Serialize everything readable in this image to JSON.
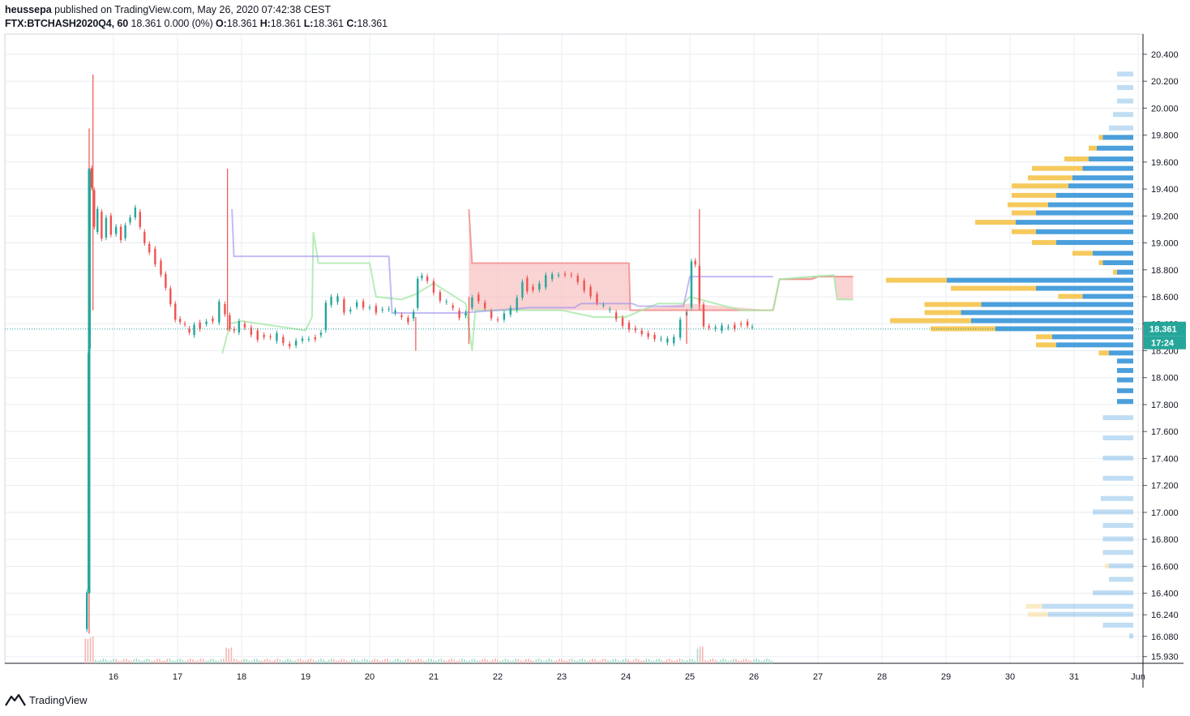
{
  "header": {
    "author": "heussepa",
    "published_text": "published on TradingView.com, May 26, 2020 07:42:38 CEST",
    "symbol": "FTX:BTCHASH2020Q4, 60",
    "change": "18.361 0.000 (0%)",
    "o_label": "O:",
    "o": "18.361",
    "h_label": "H:",
    "h": "18.361",
    "l_label": "L:",
    "l": "18.361",
    "c_label": "C:",
    "c": "18.361"
  },
  "footer": {
    "brand": "TradingView"
  },
  "colors": {
    "up": "#26a69a",
    "down": "#ef5350",
    "grid": "#e8edf1",
    "volume_profile_blue": "#4a9fdc",
    "volume_profile_yellow": "#f6c95c",
    "price_line": "#26a69a",
    "cloud_red": "#f8c4c4",
    "cloud_green": "#c8efc8",
    "kijun": "#9c8cf0"
  },
  "chart_data": {
    "type": "candlestick",
    "symbol": "FTX:BTCHASH2020Q4",
    "interval": "60",
    "x_ticks": [
      "16",
      "17",
      "18",
      "19",
      "20",
      "21",
      "22",
      "23",
      "24",
      "25",
      "26",
      "27",
      "28",
      "29",
      "30",
      "31",
      "Jun"
    ],
    "y_ticks": [
      "20.400",
      "20.200",
      "20.000",
      "19.800",
      "19.600",
      "19.400",
      "19.200",
      "19.000",
      "18.800",
      "18.600",
      "18.400",
      "18.200",
      "18.000",
      "17.800",
      "17.600",
      "17.400",
      "17.200",
      "17.000",
      "16.800",
      "16.600",
      "16.400",
      "16.240",
      "16.080",
      "15.930"
    ],
    "y_tick_values": [
      20.4,
      20.2,
      20.0,
      19.8,
      19.6,
      19.4,
      19.2,
      19.0,
      18.8,
      18.6,
      18.4,
      18.2,
      18.0,
      17.8,
      17.6,
      17.4,
      17.2,
      17.0,
      16.8,
      16.6,
      16.4,
      16.24,
      16.08,
      15.93
    ],
    "ylim": [
      15.88,
      20.55
    ],
    "x_start_day": 15.0,
    "last_price": "18.361",
    "last_price_value": 18.361,
    "countdown": "17:24",
    "grid": true,
    "price_path": [
      [
        15.57,
        16.12
      ],
      [
        15.6,
        16.4
      ],
      [
        15.62,
        18.2
      ],
      [
        15.64,
        19.55
      ],
      [
        15.68,
        19.4
      ],
      [
        15.72,
        19.1
      ],
      [
        15.78,
        19.25
      ],
      [
        15.85,
        19.05
      ],
      [
        15.92,
        19.2
      ],
      [
        16.0,
        19.05
      ],
      [
        16.08,
        19.1
      ],
      [
        16.15,
        19.02
      ],
      [
        16.22,
        19.15
      ],
      [
        16.3,
        19.2
      ],
      [
        16.38,
        19.25
      ],
      [
        16.45,
        19.1
      ],
      [
        16.52,
        19.0
      ],
      [
        16.6,
        18.95
      ],
      [
        16.7,
        18.85
      ],
      [
        16.78,
        18.75
      ],
      [
        16.85,
        18.65
      ],
      [
        16.93,
        18.55
      ],
      [
        17.0,
        18.45
      ],
      [
        17.08,
        18.42
      ],
      [
        17.15,
        18.38
      ],
      [
        17.22,
        18.32
      ],
      [
        17.3,
        18.4
      ],
      [
        17.4,
        18.38
      ],
      [
        17.5,
        18.42
      ],
      [
        17.6,
        18.4
      ],
      [
        17.7,
        18.55
      ],
      [
        17.78,
        18.48
      ],
      [
        17.85,
        18.38
      ],
      [
        17.92,
        18.35
      ],
      [
        18.0,
        18.4
      ],
      [
        18.1,
        18.36
      ],
      [
        18.2,
        18.33
      ],
      [
        18.3,
        18.3
      ],
      [
        18.4,
        18.3
      ],
      [
        18.5,
        18.28
      ],
      [
        18.6,
        18.32
      ],
      [
        18.7,
        18.27
      ],
      [
        18.8,
        18.25
      ],
      [
        18.9,
        18.27
      ],
      [
        19.0,
        18.27
      ],
      [
        19.1,
        18.28
      ],
      [
        19.2,
        18.3
      ],
      [
        19.28,
        18.35
      ],
      [
        19.35,
        18.55
      ],
      [
        19.45,
        18.58
      ],
      [
        19.55,
        18.6
      ],
      [
        19.65,
        18.5
      ],
      [
        19.75,
        18.52
      ],
      [
        19.85,
        18.55
      ],
      [
        19.95,
        18.5
      ],
      [
        20.05,
        18.52
      ],
      [
        20.15,
        18.5
      ],
      [
        20.25,
        18.52
      ],
      [
        20.35,
        18.5
      ],
      [
        20.45,
        18.48
      ],
      [
        20.55,
        18.45
      ],
      [
        20.65,
        18.43
      ],
      [
        20.72,
        18.5
      ],
      [
        20.78,
        18.72
      ],
      [
        20.85,
        18.74
      ],
      [
        20.95,
        18.72
      ],
      [
        21.05,
        18.65
      ],
      [
        21.15,
        18.58
      ],
      [
        21.25,
        18.55
      ],
      [
        21.35,
        18.5
      ],
      [
        21.45,
        18.45
      ],
      [
        21.55,
        18.5
      ],
      [
        21.65,
        18.6
      ],
      [
        21.75,
        18.55
      ],
      [
        21.85,
        18.5
      ],
      [
        21.95,
        18.45
      ],
      [
        22.05,
        18.45
      ],
      [
        22.15,
        18.48
      ],
      [
        22.25,
        18.5
      ],
      [
        22.35,
        18.58
      ],
      [
        22.42,
        18.72
      ],
      [
        22.5,
        18.66
      ],
      [
        22.6,
        18.65
      ],
      [
        22.7,
        18.68
      ],
      [
        22.8,
        18.75
      ],
      [
        22.9,
        18.78
      ],
      [
        23.0,
        18.78
      ],
      [
        23.1,
        18.76
      ],
      [
        23.2,
        18.74
      ],
      [
        23.3,
        18.7
      ],
      [
        23.4,
        18.66
      ],
      [
        23.5,
        18.62
      ],
      [
        23.6,
        18.55
      ],
      [
        23.7,
        18.52
      ],
      [
        23.8,
        18.5
      ],
      [
        23.9,
        18.45
      ],
      [
        24.0,
        18.4
      ],
      [
        24.1,
        18.35
      ],
      [
        24.2,
        18.33
      ],
      [
        24.3,
        18.32
      ],
      [
        24.4,
        18.32
      ],
      [
        24.5,
        18.3
      ],
      [
        24.6,
        18.28
      ],
      [
        24.7,
        18.27
      ],
      [
        24.8,
        18.3
      ],
      [
        24.9,
        18.45
      ],
      [
        25.0,
        18.5
      ],
      [
        25.05,
        18.85
      ],
      [
        25.12,
        18.82
      ],
      [
        25.18,
        18.55
      ],
      [
        25.25,
        18.4
      ],
      [
        25.35,
        18.38
      ],
      [
        25.45,
        18.36
      ],
      [
        25.55,
        18.37
      ],
      [
        25.65,
        18.38
      ],
      [
        25.75,
        18.38
      ],
      [
        25.85,
        18.4
      ],
      [
        25.95,
        18.37
      ],
      [
        26.0,
        18.361
      ]
    ],
    "spikes": [
      {
        "day": 15.68,
        "high": 20.25,
        "low": 18.5
      },
      {
        "day": 15.62,
        "high": 19.85,
        "low": 16.1
      },
      {
        "day": 17.78,
        "high": 19.55,
        "low": 18.35
      },
      {
        "day": 21.55,
        "high": 18.6,
        "low": 18.25
      },
      {
        "day": 25.15,
        "high": 19.25,
        "low": 18.5
      },
      {
        "day": 20.72,
        "high": 18.45,
        "low": 18.2
      },
      {
        "day": 24.95,
        "high": 18.5,
        "low": 18.25
      }
    ],
    "kijun": [
      [
        17.85,
        19.25
      ],
      [
        17.88,
        18.9
      ],
      [
        20.3,
        18.9
      ],
      [
        20.35,
        18.48
      ],
      [
        20.75,
        18.48
      ],
      [
        21.4,
        18.48
      ],
      [
        22.0,
        18.5
      ],
      [
        22.5,
        18.52
      ],
      [
        23.0,
        18.52
      ],
      [
        23.2,
        18.52
      ],
      [
        23.3,
        18.55
      ],
      [
        24.1,
        18.55
      ],
      [
        24.2,
        18.53
      ],
      [
        24.9,
        18.53
      ],
      [
        25.0,
        18.75
      ],
      [
        26.3,
        18.75
      ]
    ],
    "tenkan": [
      [
        17.7,
        18.18
      ],
      [
        17.82,
        18.4
      ],
      [
        18.0,
        18.42
      ],
      [
        19.0,
        18.35
      ],
      [
        19.1,
        18.45
      ],
      [
        19.12,
        19.08
      ],
      [
        19.2,
        18.85
      ],
      [
        20.0,
        18.85
      ],
      [
        20.1,
        18.6
      ],
      [
        20.5,
        18.58
      ],
      [
        20.72,
        18.62
      ],
      [
        21.0,
        18.7
      ],
      [
        21.5,
        18.55
      ],
      [
        21.6,
        18.2
      ],
      [
        21.65,
        18.5
      ],
      [
        22.5,
        18.5
      ],
      [
        23.0,
        18.5
      ],
      [
        23.5,
        18.45
      ],
      [
        24.0,
        18.45
      ],
      [
        24.5,
        18.55
      ],
      [
        24.9,
        18.55
      ],
      [
        25.0,
        18.6
      ],
      [
        25.8,
        18.5
      ],
      [
        26.3,
        18.5
      ]
    ],
    "cloud_red": [
      [
        21.55,
        19.25
      ],
      [
        21.6,
        18.85
      ],
      [
        21.95,
        18.85
      ],
      [
        23.0,
        18.85
      ],
      [
        24.05,
        18.85
      ],
      [
        24.07,
        18.5
      ],
      [
        25.2,
        18.5
      ],
      [
        26.3,
        18.5
      ]
    ],
    "cloud_lower": [
      [
        21.55,
        18.5
      ],
      [
        22.5,
        18.5
      ],
      [
        24.0,
        18.5
      ],
      [
        25.0,
        18.55
      ],
      [
        26.3,
        18.5
      ]
    ],
    "future_cloud_red": [
      [
        26.3,
        18.5
      ],
      [
        26.4,
        18.73
      ],
      [
        26.9,
        18.73
      ],
      [
        27.0,
        18.75
      ],
      [
        27.55,
        18.75
      ]
    ],
    "future_cloud_green": [
      [
        26.3,
        18.5
      ],
      [
        26.4,
        18.73
      ],
      [
        26.9,
        18.75
      ],
      [
        27.25,
        18.76
      ],
      [
        27.3,
        18.58
      ],
      [
        27.55,
        18.58
      ]
    ],
    "volume_profile": [
      {
        "price": 20.25,
        "blue": 0.08,
        "yellow": 0.0,
        "faded": true
      },
      {
        "price": 20.15,
        "blue": 0.08,
        "yellow": 0.0,
        "faded": true
      },
      {
        "price": 20.05,
        "blue": 0.08,
        "yellow": 0.0,
        "faded": true
      },
      {
        "price": 19.95,
        "blue": 0.1,
        "yellow": 0.0,
        "faded": true
      },
      {
        "price": 19.85,
        "blue": 0.12,
        "yellow": 0.0,
        "faded": true
      },
      {
        "price": 19.78,
        "blue": 0.15,
        "yellow": 0.02
      },
      {
        "price": 19.7,
        "blue": 0.18,
        "yellow": 0.04
      },
      {
        "price": 19.62,
        "blue": 0.22,
        "yellow": 0.12
      },
      {
        "price": 19.55,
        "blue": 0.25,
        "yellow": 0.25
      },
      {
        "price": 19.48,
        "blue": 0.3,
        "yellow": 0.22
      },
      {
        "price": 19.42,
        "blue": 0.32,
        "yellow": 0.28
      },
      {
        "price": 19.35,
        "blue": 0.38,
        "yellow": 0.22
      },
      {
        "price": 19.28,
        "blue": 0.42,
        "yellow": 0.2
      },
      {
        "price": 19.22,
        "blue": 0.48,
        "yellow": 0.12
      },
      {
        "price": 19.15,
        "blue": 0.58,
        "yellow": 0.2
      },
      {
        "price": 19.08,
        "blue": 0.48,
        "yellow": 0.12
      },
      {
        "price": 19.0,
        "blue": 0.38,
        "yellow": 0.12
      },
      {
        "price": 18.92,
        "blue": 0.2,
        "yellow": 0.1
      },
      {
        "price": 18.85,
        "blue": 0.15,
        "yellow": 0.02
      },
      {
        "price": 18.78,
        "blue": 0.08,
        "yellow": 0.02
      },
      {
        "price": 18.72,
        "blue": 0.92,
        "yellow": 0.3
      },
      {
        "price": 18.66,
        "blue": 0.48,
        "yellow": 0.42
      },
      {
        "price": 18.6,
        "blue": 0.25,
        "yellow": 0.12
      },
      {
        "price": 18.54,
        "blue": 0.75,
        "yellow": 0.28
      },
      {
        "price": 18.48,
        "blue": 0.85,
        "yellow": 0.18
      },
      {
        "price": 18.42,
        "blue": 0.8,
        "yellow": 0.4
      },
      {
        "price": 18.36,
        "blue": 0.68,
        "yellow": 0.32
      },
      {
        "price": 18.3,
        "blue": 0.4,
        "yellow": 0.08
      },
      {
        "price": 18.24,
        "blue": 0.38,
        "yellow": 0.1
      },
      {
        "price": 18.18,
        "blue": 0.12,
        "yellow": 0.05
      },
      {
        "price": 18.12,
        "blue": 0.08,
        "yellow": 0.0
      },
      {
        "price": 18.05,
        "blue": 0.08,
        "yellow": 0.0
      },
      {
        "price": 17.98,
        "blue": 0.08,
        "yellow": 0.0
      },
      {
        "price": 17.9,
        "blue": 0.08,
        "yellow": 0.0
      },
      {
        "price": 17.82,
        "blue": 0.08,
        "yellow": 0.0
      },
      {
        "price": 17.7,
        "blue": 0.15,
        "yellow": 0.0,
        "faded": true
      },
      {
        "price": 17.55,
        "blue": 0.15,
        "yellow": 0.0,
        "faded": true
      },
      {
        "price": 17.4,
        "blue": 0.15,
        "yellow": 0.0,
        "faded": true
      },
      {
        "price": 17.25,
        "blue": 0.15,
        "yellow": 0.0,
        "faded": true
      },
      {
        "price": 17.1,
        "blue": 0.16,
        "yellow": 0.0,
        "faded": true
      },
      {
        "price": 17.0,
        "blue": 0.2,
        "yellow": 0.0,
        "faded": true
      },
      {
        "price": 16.9,
        "blue": 0.15,
        "yellow": 0.0,
        "faded": true
      },
      {
        "price": 16.8,
        "blue": 0.15,
        "yellow": 0.0,
        "faded": true
      },
      {
        "price": 16.7,
        "blue": 0.15,
        "yellow": 0.0,
        "faded": true
      },
      {
        "price": 16.6,
        "blue": 0.12,
        "yellow": 0.02,
        "faded": true
      },
      {
        "price": 16.5,
        "blue": 0.12,
        "yellow": 0.0,
        "faded": true
      },
      {
        "price": 16.4,
        "blue": 0.2,
        "yellow": 0.0,
        "faded": true
      },
      {
        "price": 16.3,
        "blue": 0.45,
        "yellow": 0.08,
        "faded": true
      },
      {
        "price": 16.24,
        "blue": 0.42,
        "yellow": 0.1,
        "faded": true
      },
      {
        "price": 16.16,
        "blue": 0.15,
        "yellow": 0.0,
        "faded": true
      },
      {
        "price": 16.08,
        "blue": 0.02,
        "yellow": 0.0,
        "faded": true
      }
    ]
  }
}
